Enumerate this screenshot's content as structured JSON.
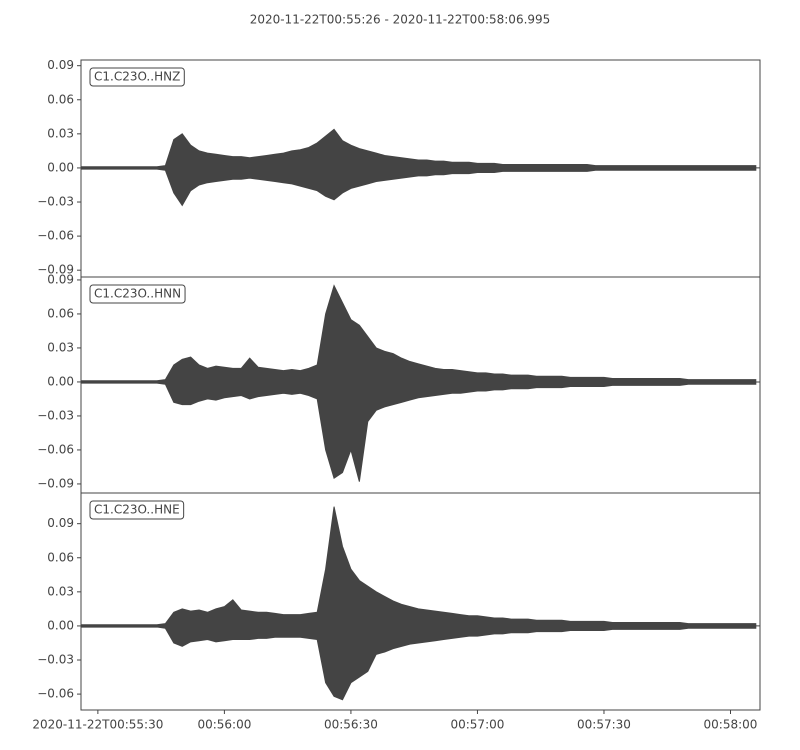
{
  "title": "2020-11-22T00:55:26  -  2020-11-22T00:58:06.995",
  "chart_data": [
    {
      "type": "waveform",
      "label": "C1.C23O..HNZ",
      "color": "#444444",
      "x": [
        0,
        2,
        4,
        6,
        8,
        10,
        12,
        14,
        16,
        18,
        20,
        22,
        24,
        26,
        28,
        30,
        32,
        34,
        36,
        38,
        40,
        42,
        44,
        46,
        48,
        50,
        52,
        54,
        56,
        58,
        60,
        62,
        64,
        66,
        68,
        70,
        72,
        74,
        76,
        78,
        80,
        82,
        84,
        86,
        88,
        90,
        92,
        94,
        96,
        98,
        100,
        102,
        104,
        106,
        108,
        110,
        112,
        114,
        116,
        118,
        120,
        122,
        124,
        126,
        128,
        130,
        132,
        134,
        136,
        138,
        140,
        142,
        144,
        146,
        148,
        150,
        152,
        154,
        156,
        158,
        160
      ],
      "series": [
        {
          "values": [
            0.001,
            0.001,
            0.001,
            0.001,
            0.001,
            0.001,
            0.001,
            0.001,
            0.001,
            0.001,
            0.002,
            0.025,
            0.03,
            0.02,
            0.015,
            0.013,
            0.012,
            0.011,
            0.01,
            0.01,
            0.009,
            0.01,
            0.011,
            0.012,
            0.013,
            0.015,
            0.016,
            0.018,
            0.022,
            0.028,
            0.034,
            0.024,
            0.02,
            0.017,
            0.015,
            0.013,
            0.011,
            0.01,
            0.009,
            0.008,
            0.007,
            0.007,
            0.006,
            0.006,
            0.005,
            0.005,
            0.005,
            0.004,
            0.004,
            0.004,
            0.003,
            0.003,
            0.003,
            0.003,
            0.003,
            0.003,
            0.003,
            0.003,
            0.003,
            0.003,
            0.003,
            0.002,
            0.002,
            0.002,
            0.002,
            0.002,
            0.002,
            0.002,
            0.002,
            0.002,
            0.002,
            0.002,
            0.002,
            0.002,
            0.002,
            0.002,
            0.002,
            0.002,
            0.002,
            0.002,
            0.002
          ]
        },
        {
          "values": [
            -0.001,
            -0.001,
            -0.001,
            -0.001,
            -0.001,
            -0.001,
            -0.001,
            -0.001,
            -0.001,
            -0.001,
            -0.002,
            -0.022,
            -0.033,
            -0.02,
            -0.015,
            -0.013,
            -0.012,
            -0.011,
            -0.01,
            -0.01,
            -0.009,
            -0.01,
            -0.011,
            -0.012,
            -0.013,
            -0.014,
            -0.016,
            -0.018,
            -0.02,
            -0.025,
            -0.028,
            -0.022,
            -0.018,
            -0.016,
            -0.014,
            -0.012,
            -0.011,
            -0.01,
            -0.009,
            -0.008,
            -0.007,
            -0.007,
            -0.006,
            -0.006,
            -0.005,
            -0.005,
            -0.005,
            -0.004,
            -0.004,
            -0.004,
            -0.003,
            -0.003,
            -0.003,
            -0.003,
            -0.003,
            -0.003,
            -0.003,
            -0.003,
            -0.003,
            -0.003,
            -0.003,
            -0.002,
            -0.002,
            -0.002,
            -0.002,
            -0.002,
            -0.002,
            -0.002,
            -0.002,
            -0.002,
            -0.002,
            -0.002,
            -0.002,
            -0.002,
            -0.002,
            -0.002,
            -0.002,
            -0.002,
            -0.002,
            -0.002,
            -0.002
          ]
        }
      ],
      "xlim": [
        0,
        160.995
      ],
      "ylim": [
        -0.096,
        0.095
      ],
      "yticks": [
        {
          "value": -0.09,
          "label": "−0.09"
        },
        {
          "value": -0.06,
          "label": "−0.06"
        },
        {
          "value": -0.03,
          "label": "−0.03"
        },
        {
          "value": 0,
          "label": "0.00"
        },
        0.03,
        0.06,
        0.09
      ]
    },
    {
      "type": "waveform",
      "label": "C1.C23O..HNN",
      "color": "#444444",
      "x": [
        0,
        2,
        4,
        6,
        8,
        10,
        12,
        14,
        16,
        18,
        20,
        22,
        24,
        26,
        28,
        30,
        32,
        34,
        36,
        38,
        40,
        42,
        44,
        46,
        48,
        50,
        52,
        54,
        56,
        58,
        60,
        62,
        64,
        66,
        68,
        70,
        72,
        74,
        76,
        78,
        80,
        82,
        84,
        86,
        88,
        90,
        92,
        94,
        96,
        98,
        100,
        102,
        104,
        106,
        108,
        110,
        112,
        114,
        116,
        118,
        120,
        122,
        124,
        126,
        128,
        130,
        132,
        134,
        136,
        138,
        140,
        142,
        144,
        146,
        148,
        150,
        152,
        154,
        156,
        158,
        160
      ],
      "series": [
        {
          "values": [
            0.001,
            0.001,
            0.001,
            0.001,
            0.001,
            0.001,
            0.001,
            0.001,
            0.001,
            0.001,
            0.002,
            0.015,
            0.02,
            0.022,
            0.015,
            0.012,
            0.014,
            0.013,
            0.012,
            0.012,
            0.021,
            0.013,
            0.012,
            0.011,
            0.01,
            0.011,
            0.01,
            0.012,
            0.015,
            0.06,
            0.085,
            0.07,
            0.055,
            0.05,
            0.04,
            0.03,
            0.027,
            0.025,
            0.021,
            0.018,
            0.016,
            0.014,
            0.012,
            0.011,
            0.011,
            0.01,
            0.009,
            0.008,
            0.008,
            0.007,
            0.007,
            0.006,
            0.006,
            0.006,
            0.005,
            0.005,
            0.005,
            0.005,
            0.004,
            0.004,
            0.004,
            0.004,
            0.004,
            0.003,
            0.003,
            0.003,
            0.003,
            0.003,
            0.003,
            0.003,
            0.003,
            0.003,
            0.002,
            0.002,
            0.002,
            0.002,
            0.002,
            0.002,
            0.002,
            0.002,
            0.002
          ]
        },
        {
          "values": [
            -0.001,
            -0.001,
            -0.001,
            -0.001,
            -0.001,
            -0.001,
            -0.001,
            -0.001,
            -0.001,
            -0.001,
            -0.002,
            -0.018,
            -0.02,
            -0.02,
            -0.017,
            -0.015,
            -0.016,
            -0.014,
            -0.013,
            -0.012,
            -0.015,
            -0.013,
            -0.012,
            -0.011,
            -0.01,
            -0.011,
            -0.01,
            -0.012,
            -0.015,
            -0.06,
            -0.085,
            -0.08,
            -0.06,
            -0.088,
            -0.035,
            -0.025,
            -0.022,
            -0.02,
            -0.018,
            -0.016,
            -0.014,
            -0.013,
            -0.012,
            -0.011,
            -0.01,
            -0.01,
            -0.009,
            -0.008,
            -0.008,
            -0.007,
            -0.007,
            -0.006,
            -0.006,
            -0.006,
            -0.005,
            -0.005,
            -0.005,
            -0.005,
            -0.004,
            -0.004,
            -0.004,
            -0.004,
            -0.004,
            -0.003,
            -0.003,
            -0.003,
            -0.003,
            -0.003,
            -0.003,
            -0.003,
            -0.003,
            -0.003,
            -0.002,
            -0.002,
            -0.002,
            -0.002,
            -0.002,
            -0.002,
            -0.002,
            -0.002,
            -0.002
          ]
        }
      ],
      "xlim": [
        0,
        160.995
      ],
      "ylim": [
        -0.098,
        0.0926
      ],
      "yticks": [
        {
          "value": -0.09,
          "label": "−0.09"
        },
        {
          "value": -0.06,
          "label": "−0.06"
        },
        {
          "value": -0.03,
          "label": "−0.03"
        },
        {
          "value": 0,
          "label": "0.00"
        },
        0.03,
        0.06,
        0.09
      ]
    },
    {
      "type": "waveform",
      "label": "C1.C23O..HNE",
      "color": "#444444",
      "x": [
        0,
        2,
        4,
        6,
        8,
        10,
        12,
        14,
        16,
        18,
        20,
        22,
        24,
        26,
        28,
        30,
        32,
        34,
        36,
        38,
        40,
        42,
        44,
        46,
        48,
        50,
        52,
        54,
        56,
        58,
        60,
        62,
        64,
        66,
        68,
        70,
        72,
        74,
        76,
        78,
        80,
        82,
        84,
        86,
        88,
        90,
        92,
        94,
        96,
        98,
        100,
        102,
        104,
        106,
        108,
        110,
        112,
        114,
        116,
        118,
        120,
        122,
        124,
        126,
        128,
        130,
        132,
        134,
        136,
        138,
        140,
        142,
        144,
        146,
        148,
        150,
        152,
        154,
        156,
        158,
        160
      ],
      "series": [
        {
          "values": [
            0.001,
            0.001,
            0.001,
            0.001,
            0.001,
            0.001,
            0.001,
            0.001,
            0.001,
            0.001,
            0.002,
            0.012,
            0.015,
            0.013,
            0.014,
            0.012,
            0.015,
            0.017,
            0.023,
            0.014,
            0.013,
            0.012,
            0.012,
            0.011,
            0.01,
            0.01,
            0.01,
            0.011,
            0.012,
            0.05,
            0.105,
            0.07,
            0.05,
            0.04,
            0.035,
            0.03,
            0.026,
            0.022,
            0.019,
            0.017,
            0.015,
            0.014,
            0.013,
            0.012,
            0.011,
            0.01,
            0.009,
            0.009,
            0.008,
            0.007,
            0.007,
            0.006,
            0.006,
            0.006,
            0.005,
            0.005,
            0.005,
            0.005,
            0.004,
            0.004,
            0.004,
            0.004,
            0.004,
            0.003,
            0.003,
            0.003,
            0.003,
            0.003,
            0.003,
            0.003,
            0.003,
            0.003,
            0.002,
            0.002,
            0.002,
            0.002,
            0.002,
            0.002,
            0.002,
            0.002,
            0.002
          ]
        },
        {
          "values": [
            -0.001,
            -0.001,
            -0.001,
            -0.001,
            -0.001,
            -0.001,
            -0.001,
            -0.001,
            -0.001,
            -0.001,
            -0.002,
            -0.015,
            -0.018,
            -0.014,
            -0.013,
            -0.012,
            -0.014,
            -0.013,
            -0.012,
            -0.012,
            -0.012,
            -0.011,
            -0.011,
            -0.01,
            -0.01,
            -0.01,
            -0.01,
            -0.011,
            -0.012,
            -0.05,
            -0.062,
            -0.065,
            -0.05,
            -0.045,
            -0.04,
            -0.025,
            -0.023,
            -0.02,
            -0.018,
            -0.016,
            -0.015,
            -0.014,
            -0.013,
            -0.012,
            -0.011,
            -0.01,
            -0.009,
            -0.009,
            -0.008,
            -0.007,
            -0.007,
            -0.006,
            -0.006,
            -0.006,
            -0.005,
            -0.005,
            -0.005,
            -0.005,
            -0.004,
            -0.004,
            -0.004,
            -0.004,
            -0.004,
            -0.003,
            -0.003,
            -0.003,
            -0.003,
            -0.003,
            -0.003,
            -0.003,
            -0.003,
            -0.003,
            -0.002,
            -0.002,
            -0.002,
            -0.002,
            -0.002,
            -0.002,
            -0.002,
            -0.002,
            -0.002
          ]
        }
      ],
      "xlim": [
        0,
        160.995
      ],
      "ylim": [
        -0.074,
        0.117
      ],
      "yticks": [
        {
          "value": -0.06,
          "label": "−0.06"
        },
        {
          "value": -0.03,
          "label": "−0.03"
        },
        {
          "value": 0,
          "label": "0.00"
        },
        0.03,
        0.06,
        0.09
      ],
      "xticks": [
        {
          "value": 4,
          "label": "2020-11-22T00:55:30"
        },
        {
          "value": 34,
          "label": "00:56:00"
        },
        {
          "value": 64,
          "label": "00:56:30"
        },
        {
          "value": 94,
          "label": "00:57:00"
        },
        {
          "value": 124,
          "label": "00:57:30"
        },
        {
          "value": 154,
          "label": "00:58:00"
        }
      ]
    }
  ]
}
